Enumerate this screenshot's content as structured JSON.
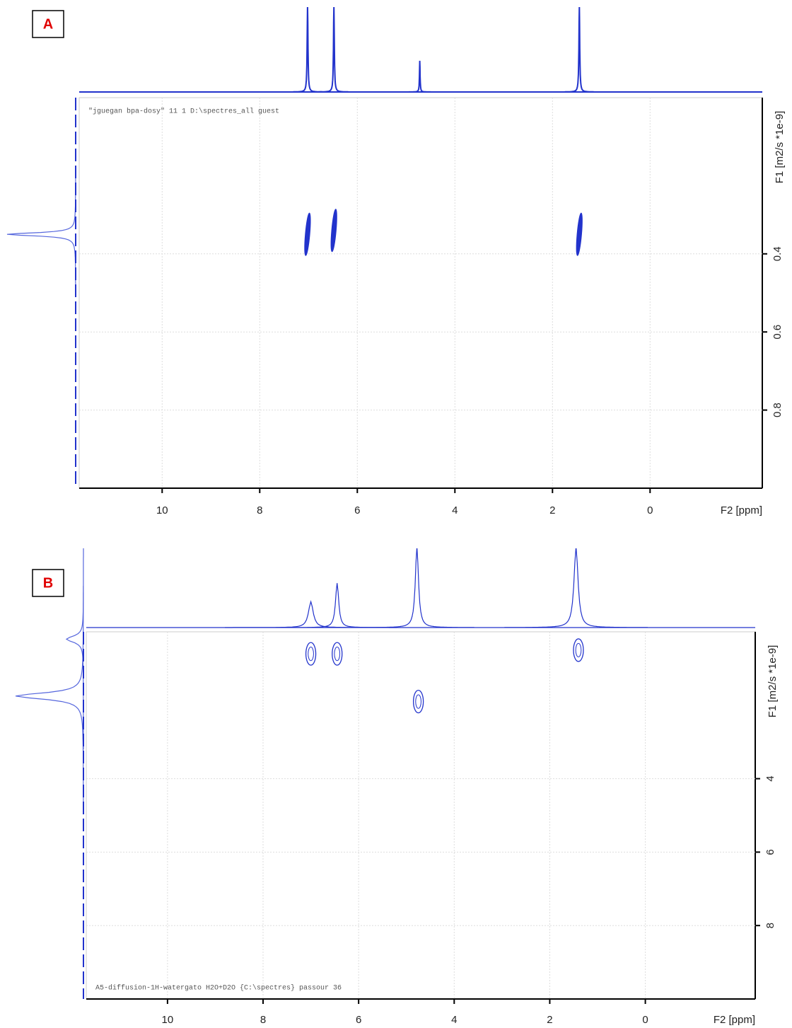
{
  "chart_data": [
    {
      "type": "dosy",
      "panel_label": "A",
      "annotation": "\"jguegan bpa-dosy\"  11  1  D:\\spectres_all  guest",
      "xlabel": "F2 [ppm]",
      "ylabel": "F1 [m2/s *1e-9]",
      "xlim": [
        11.7,
        -2.3
      ],
      "ylim": [
        0,
        1.0
      ],
      "xticks": [
        10,
        8,
        6,
        4,
        2,
        0
      ],
      "yticks": [
        0.4,
        0.6,
        0.8
      ],
      "f2_projection": [
        {
          "ppm": 7.02,
          "height": 1.0,
          "linewidth": 0.02
        },
        {
          "ppm": 6.48,
          "height": 1.0,
          "linewidth": 0.02
        },
        {
          "ppm": 4.72,
          "height": 0.36,
          "linewidth": 0.015
        },
        {
          "ppm": 1.45,
          "height": 1.0,
          "linewidth": 0.02
        }
      ],
      "f1_projection": [
        {
          "d": 0.35,
          "height": 1.0,
          "linewidth": 0.012
        }
      ],
      "spots": [
        {
          "ppm": 7.02,
          "d": 0.35
        },
        {
          "ppm": 6.48,
          "d": 0.34
        },
        {
          "ppm": 1.45,
          "d": 0.35
        }
      ]
    },
    {
      "type": "dosy",
      "panel_label": "B",
      "annotation": "A5-diffusion-1H-watergato H2O+D2O {C:\\spectres} passour 36",
      "xlabel": "F2 [ppm]",
      "ylabel": "F1 [m2/s *1e-9]",
      "xlim": [
        11.7,
        -2.3
      ],
      "ylim": [
        0,
        10
      ],
      "xticks": [
        10,
        8,
        6,
        4,
        2,
        0
      ],
      "yticks": [
        4,
        6,
        8
      ],
      "f2_projection": [
        {
          "ppm": 7.0,
          "height": 0.32,
          "linewidth": 0.12
        },
        {
          "ppm": 6.45,
          "height": 0.55,
          "linewidth": 0.08
        },
        {
          "ppm": 4.78,
          "height": 1.0,
          "linewidth": 0.08
        },
        {
          "ppm": 1.45,
          "height": 1.0,
          "linewidth": 0.1
        }
      ],
      "f1_projection": [
        {
          "d": 0.2,
          "height": 0.25,
          "linewidth": 0.25
        },
        {
          "d": 1.75,
          "height": 1.0,
          "linewidth": 0.25
        }
      ],
      "spots": [
        {
          "ppm": 7.0,
          "d": 0.6
        },
        {
          "ppm": 6.45,
          "d": 0.6
        },
        {
          "ppm": 4.75,
          "d": 1.9
        },
        {
          "ppm": 1.4,
          "d": 0.5
        }
      ]
    }
  ]
}
